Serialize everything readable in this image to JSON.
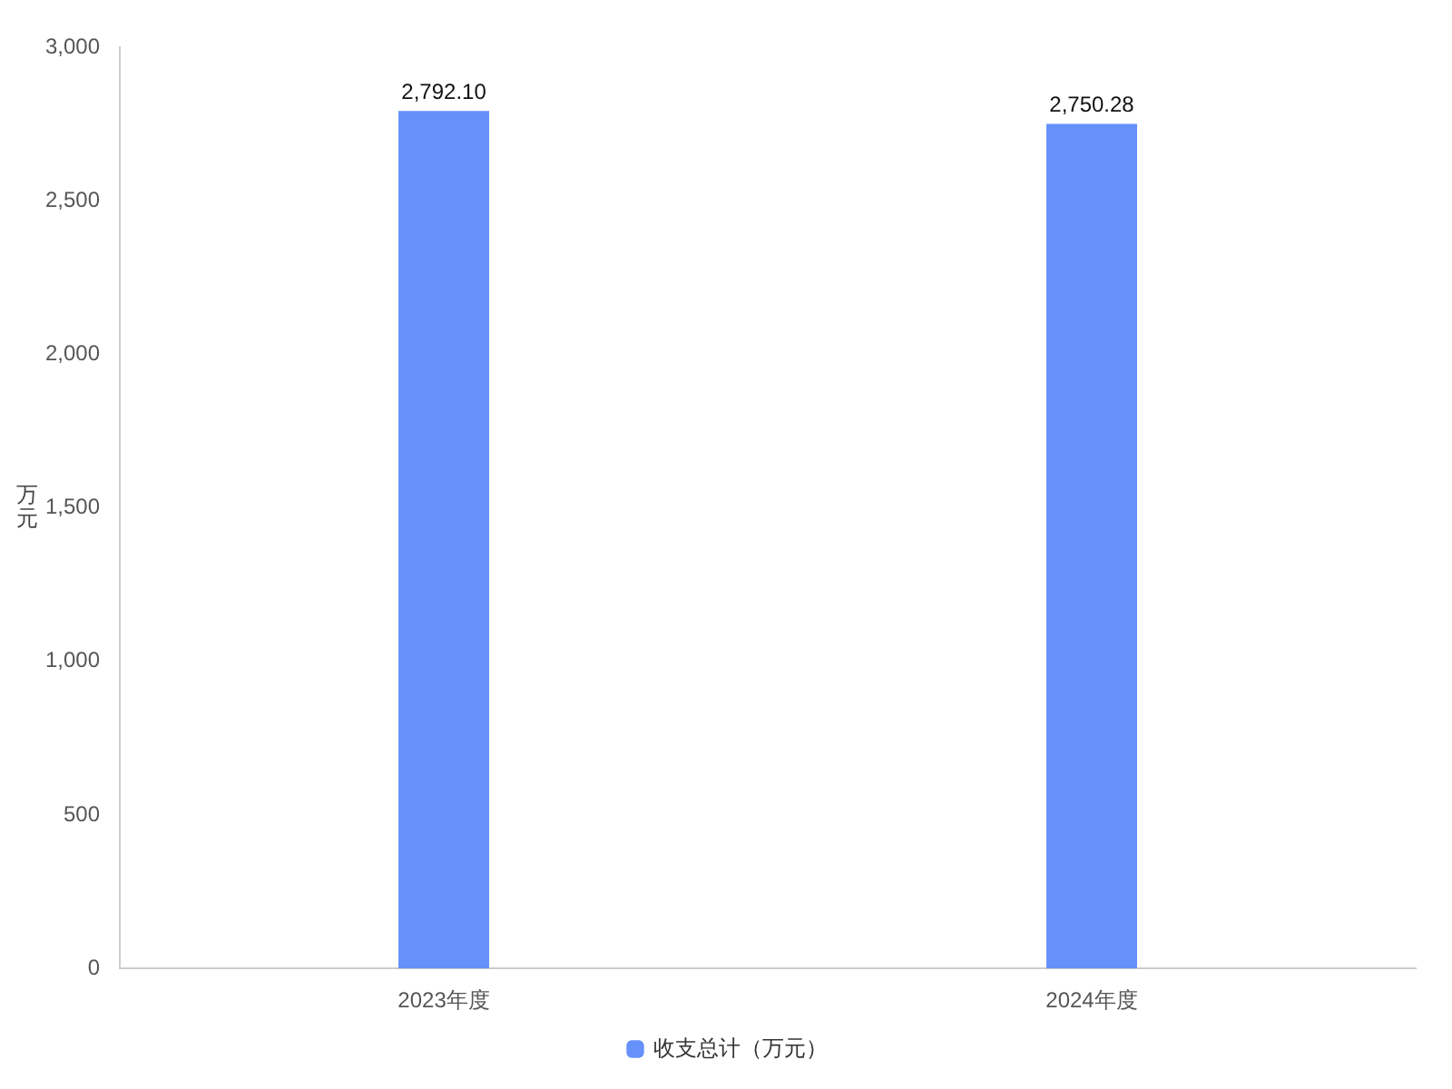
{
  "chart_data": {
    "type": "bar",
    "ylabel": "万元",
    "categories": [
      "2023年度",
      "2024年度"
    ],
    "series": [
      {
        "name": "收支总计（万元）",
        "color": "#6690fa",
        "values": [
          2792.1,
          2750.28
        ],
        "value_labels": [
          "2,792.10",
          "2,750.28"
        ]
      }
    ],
    "ylim": [
      0,
      3000
    ],
    "yticks": [
      0,
      500,
      {
        "value": 1000,
        "label": "1,000"
      },
      {
        "value": 1500,
        "label": "1,500"
      },
      {
        "value": 2000,
        "label": "2,000"
      },
      {
        "value": 2500,
        "label": "2,500"
      },
      {
        "value": 3000,
        "label": "3,000"
      }
    ],
    "grid": false,
    "legend": "bottom"
  }
}
